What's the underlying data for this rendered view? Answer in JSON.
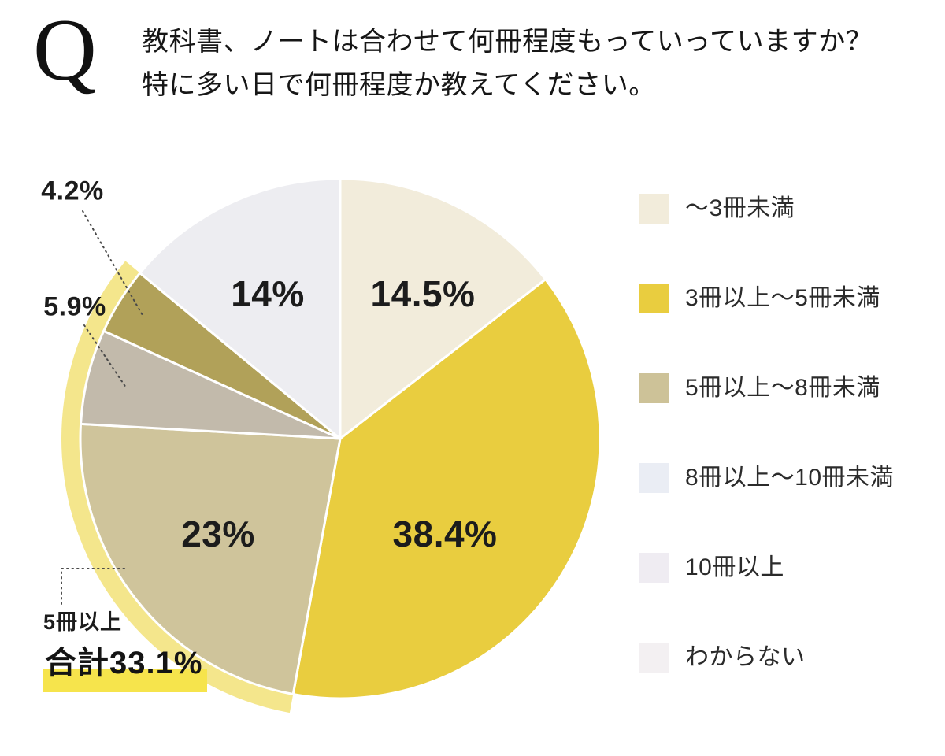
{
  "header": {
    "q": "Q",
    "line1": "教科書、ノートは合わせて何冊程度もっていっていますか？",
    "line2": "特に多い日で何冊程度か教えてください。"
  },
  "chart_data": {
    "type": "pie",
    "title": "教科書、ノートは合わせて何冊程度もっていっていますか？特に多い日で何冊程度か教えてください。",
    "unit": "%",
    "start_angle": "top",
    "direction": "clockwise",
    "slices": [
      {
        "label": "～3冊未満",
        "value": 14.5,
        "display": "14.5%",
        "color": "#f2ecdb",
        "label_pos": "inside"
      },
      {
        "label": "3冊以上～5冊未満",
        "value": 38.4,
        "display": "38.4%",
        "color": "#e9cd3f",
        "label_pos": "inside"
      },
      {
        "label": "5冊以上～8冊未満",
        "value": 23,
        "display": "23%",
        "color": "#cfc49b",
        "label_pos": "inside"
      },
      {
        "label": "8冊以上～10冊未満",
        "value": 5.9,
        "display": "5.9%",
        "color": "#c2baab",
        "label_pos": "outside"
      },
      {
        "label": "10冊以上",
        "value": 4.2,
        "display": "4.2%",
        "color": "#b1a159",
        "label_pos": "outside"
      },
      {
        "label": "わからない",
        "value": 14,
        "display": "14%",
        "color": "#ededf1",
        "label_pos": "inside"
      }
    ],
    "highlight": {
      "label": "5冊以上",
      "total_value": 33.1,
      "total_display": "合計33.1%",
      "from_slice": 2,
      "to_slice": 4,
      "color": "#eed94e"
    }
  },
  "annotation": {
    "line1": "5冊以上",
    "line2": "合計33.1%",
    "highlight_color": "#f6e44c"
  },
  "legend": {
    "items": [
      {
        "label": "～3冊未満",
        "color": "#f2ecdb"
      },
      {
        "label": "3冊以上～5冊未満",
        "color": "#e9cd3f"
      },
      {
        "label": "5冊以上～8冊未満",
        "color": "#cdc298"
      },
      {
        "label": "8冊以上～10冊未満",
        "color": "#eaedf4"
      },
      {
        "label": "10冊以上",
        "color": "#efecf2"
      },
      {
        "label": "わからない",
        "color": "#f3f0f2"
      }
    ]
  }
}
